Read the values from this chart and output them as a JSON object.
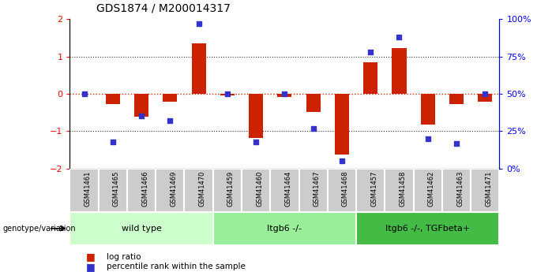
{
  "title": "GDS1874 / M200014317",
  "samples": [
    "GSM41461",
    "GSM41465",
    "GSM41466",
    "GSM41469",
    "GSM41470",
    "GSM41459",
    "GSM41460",
    "GSM41464",
    "GSM41467",
    "GSM41468",
    "GSM41457",
    "GSM41458",
    "GSM41462",
    "GSM41463",
    "GSM41471"
  ],
  "log_ratio": [
    0.0,
    -0.28,
    -0.62,
    -0.22,
    1.35,
    -0.04,
    -1.18,
    -0.08,
    -0.48,
    -1.62,
    0.85,
    1.22,
    -0.82,
    -0.28,
    -0.22
  ],
  "percentile_rank": [
    50,
    18,
    35,
    32,
    97,
    50,
    18,
    50,
    27,
    5,
    78,
    88,
    20,
    17,
    50
  ],
  "groups": [
    {
      "label": "wild type",
      "start": 0,
      "end": 5,
      "color": "#ccffcc"
    },
    {
      "label": "Itgb6 -/-",
      "start": 5,
      "end": 10,
      "color": "#99ee99"
    },
    {
      "label": "Itgb6 -/-, TGFbeta+",
      "start": 10,
      "end": 15,
      "color": "#44bb44"
    }
  ],
  "ylim": [
    -2,
    2
  ],
  "yticks": [
    -2,
    -1,
    0,
    1,
    2
  ],
  "y2lim": [
    0,
    100
  ],
  "y2ticks": [
    0,
    25,
    50,
    75,
    100
  ],
  "y2ticklabels": [
    "0%",
    "25%",
    "50%",
    "75%",
    "100%"
  ],
  "bar_color": "#cc2200",
  "dot_color": "#3333cc",
  "hline0_color": "#cc2200",
  "hline1_color": "#333333",
  "bg_color": "#ffffff",
  "sample_cell_color": "#cccccc",
  "legend_items": [
    {
      "label": "log ratio",
      "color": "#cc2200"
    },
    {
      "label": "percentile rank within the sample",
      "color": "#3333cc"
    }
  ],
  "genotype_label": "genotype/variation"
}
